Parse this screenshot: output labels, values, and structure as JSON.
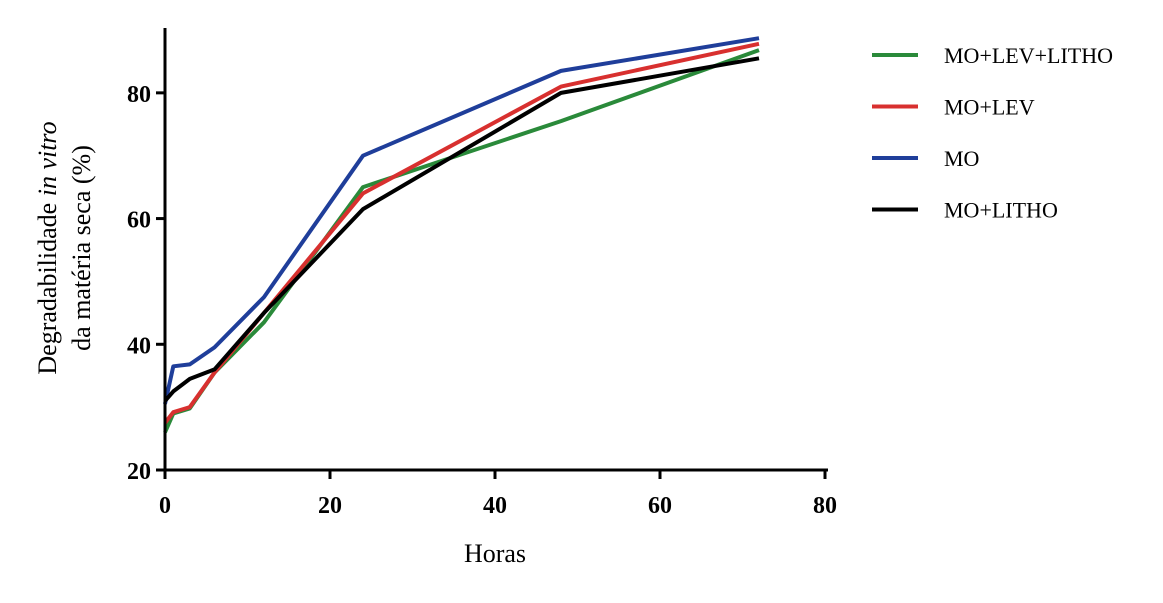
{
  "chart_data": {
    "type": "line",
    "xlabel": "Horas",
    "ylabel_line1_prefix": "Degradabilidade ",
    "ylabel_line1_italic": "in vitro",
    "ylabel_line2": "da matéria seca (%)",
    "xlim": [
      0,
      80
    ],
    "ylim": [
      20,
      90
    ],
    "x_ticks": [
      "0",
      "20",
      "40",
      "60",
      "80"
    ],
    "y_ticks": [
      "20",
      "40",
      "60",
      "80"
    ],
    "x_tick_values": [
      0,
      20,
      40,
      60,
      80
    ],
    "y_tick_values": [
      20,
      40,
      60,
      80
    ],
    "grid": false,
    "legend_position": "right",
    "x": [
      0,
      1,
      3,
      6,
      12,
      24,
      48,
      72
    ],
    "series": [
      {
        "name": "MO+LEV+LITHO",
        "color": "#2a8a3a",
        "values": [
          26.0,
          29.0,
          29.8,
          35.5,
          43.5,
          65.0,
          75.5,
          86.8
        ]
      },
      {
        "name": "MO+LEV",
        "color": "#d8302f",
        "values": [
          27.5,
          29.2,
          30.0,
          35.5,
          45.0,
          64.0,
          81.0,
          87.8
        ]
      },
      {
        "name": "MO",
        "color": "#1f3e9a",
        "values": [
          30.5,
          36.5,
          36.8,
          39.5,
          47.5,
          70.0,
          83.5,
          88.7
        ]
      },
      {
        "name": "MO+LITHO",
        "color": "#000000",
        "values": [
          31.0,
          32.5,
          34.5,
          36.0,
          45.0,
          61.5,
          80.0,
          85.5
        ]
      }
    ]
  }
}
